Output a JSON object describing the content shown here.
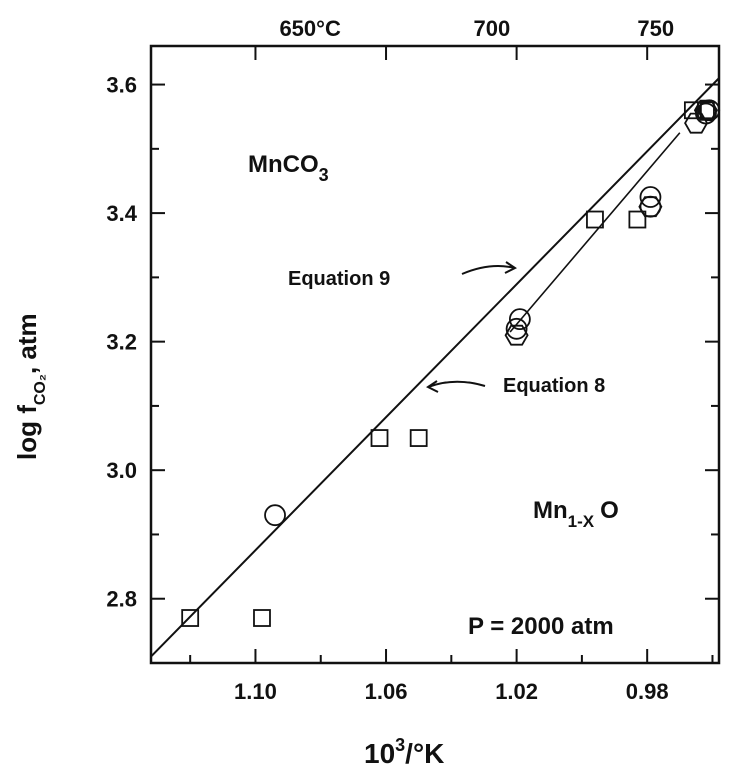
{
  "chart_data": {
    "type": "scatter",
    "x_axis": {
      "label_base": "10",
      "label_exp": "3",
      "label_tail": "/°K",
      "reversed": true,
      "range": [
        1.132,
        0.958
      ],
      "ticks": [
        1.1,
        1.06,
        1.02,
        0.98
      ],
      "tick_labels": [
        "1.10",
        "1.06",
        "1.02",
        "0.98"
      ]
    },
    "top_axis": {
      "labels": [
        "650°C",
        "700",
        "750"
      ],
      "values_celsius": [
        650,
        700,
        750
      ]
    },
    "y_axis": {
      "label_main": "log f",
      "label_sub": "CO₂",
      "label_tail": ", atm",
      "range": [
        2.7,
        3.66
      ],
      "ticks": [
        2.8,
        3.0,
        3.2,
        3.4,
        3.6
      ],
      "tick_labels": [
        "2.8",
        "3.0",
        "3.2",
        "3.4",
        "3.6"
      ]
    },
    "series": [
      {
        "marker": "square",
        "points": [
          [
            1.12,
            2.77
          ],
          [
            1.098,
            2.77
          ],
          [
            1.062,
            3.05
          ],
          [
            1.05,
            3.05
          ],
          [
            0.996,
            3.39
          ],
          [
            0.983,
            3.39
          ],
          [
            0.966,
            3.56
          ],
          [
            0.962,
            3.56
          ]
        ]
      },
      {
        "marker": "circle",
        "points": [
          [
            1.094,
            2.93
          ],
          [
            1.02,
            3.22
          ],
          [
            1.019,
            3.235
          ],
          [
            0.979,
            3.41
          ],
          [
            0.979,
            3.425
          ],
          [
            0.961,
            3.56
          ],
          [
            0.962,
            3.555
          ]
        ]
      },
      {
        "marker": "hexagon",
        "points": [
          [
            1.02,
            3.21
          ],
          [
            0.979,
            3.41
          ],
          [
            0.965,
            3.54
          ],
          [
            0.962,
            3.56
          ]
        ]
      }
    ],
    "lines": [
      {
        "name": "Equation 8",
        "points": [
          [
            1.132,
            2.71
          ],
          [
            0.958,
            3.61
          ]
        ]
      },
      {
        "name": "Equation 9",
        "points": [
          [
            1.022,
            3.215
          ],
          [
            0.97,
            3.525
          ]
        ]
      }
    ],
    "annotations": {
      "phase_upper_main": "MnCO",
      "phase_upper_sub": "3",
      "phase_lower_main": "Mn",
      "phase_lower_sub": "1-X",
      "phase_lower_tail": "O",
      "equation9": "Equation 9",
      "equation8": "Equation 8",
      "pressure": "P = 2000 atm"
    }
  }
}
